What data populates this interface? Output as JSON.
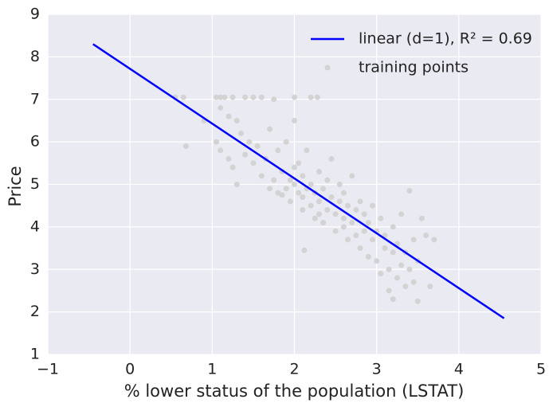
{
  "chart_data": {
    "type": "scatter",
    "xlabel": "% lower status of the population (LSTAT)",
    "ylabel": "Price",
    "xlim": [
      -1,
      5
    ],
    "ylim": [
      1,
      9
    ],
    "xticks": [
      {
        "value": -1,
        "label": "−1"
      },
      0,
      1,
      2,
      3,
      4,
      5
    ],
    "yticks": [
      1,
      2,
      3,
      4,
      5,
      6,
      7,
      8,
      9
    ],
    "grid": true,
    "legend": "upper right",
    "series": [
      {
        "name": "linear (d=1), R² = 0.69",
        "type": "line",
        "color": "#0000ff",
        "x": [
          -0.45,
          4.55
        ],
        "y": [
          8.3,
          1.85
        ]
      },
      {
        "name": "training points",
        "type": "scatter",
        "color": "#d3d3d3",
        "x": [
          0.55,
          0.65,
          0.68,
          0.9,
          1.05,
          1.1,
          1.15,
          1.25,
          1.4,
          1.5,
          1.6,
          1.75,
          2.0,
          2.2,
          2.28,
          1.1,
          1.2,
          1.3,
          1.05,
          1.1,
          1.2,
          1.25,
          1.3,
          1.35,
          1.4,
          1.45,
          1.5,
          1.55,
          1.6,
          1.65,
          1.7,
          1.7,
          1.75,
          1.8,
          1.8,
          1.85,
          1.9,
          1.9,
          1.95,
          1.95,
          2.0,
          2.0,
          2.05,
          2.05,
          2.1,
          2.1,
          2.12,
          2.15,
          2.15,
          2.2,
          2.2,
          2.25,
          2.25,
          2.3,
          2.3,
          2.35,
          2.35,
          2.4,
          2.4,
          2.45,
          2.45,
          2.5,
          2.5,
          2.55,
          2.55,
          2.6,
          2.6,
          2.65,
          2.65,
          2.7,
          2.7,
          2.75,
          2.75,
          2.8,
          2.8,
          2.85,
          2.85,
          2.9,
          2.9,
          2.95,
          2.95,
          3.0,
          3.0,
          3.05,
          3.05,
          3.1,
          3.1,
          3.15,
          3.2,
          3.2,
          3.25,
          3.25,
          3.3,
          3.3,
          3.35,
          3.35,
          3.4,
          3.4,
          3.45,
          3.45,
          3.5,
          3.5,
          3.55,
          3.6,
          3.65,
          3.7,
          3.2,
          3.15,
          2.0,
          1.85,
          2.1,
          2.3,
          2.6
        ],
        "y": [
          7.05,
          7.05,
          5.9,
          6.5,
          7.05,
          7.05,
          7.05,
          7.05,
          7.05,
          7.05,
          7.05,
          7.0,
          7.05,
          7.05,
          7.05,
          6.8,
          6.6,
          6.5,
          6.0,
          5.8,
          5.6,
          5.4,
          5.0,
          6.2,
          5.7,
          6.0,
          5.5,
          5.9,
          5.2,
          5.6,
          4.9,
          6.3,
          5.1,
          5.8,
          4.8,
          5.3,
          4.9,
          6.0,
          5.1,
          4.6,
          5.0,
          6.5,
          4.8,
          5.5,
          4.7,
          5.2,
          3.45,
          4.9,
          5.8,
          4.5,
          5.0,
          4.8,
          4.2,
          5.3,
          4.6,
          4.9,
          4.1,
          4.4,
          5.1,
          4.7,
          5.6,
          4.3,
          3.9,
          4.6,
          5.0,
          4.2,
          4.8,
          3.7,
          4.5,
          4.1,
          5.2,
          3.8,
          4.4,
          4.6,
          3.5,
          3.9,
          4.3,
          3.3,
          4.1,
          3.7,
          4.5,
          3.2,
          3.9,
          2.9,
          4.2,
          3.5,
          3.8,
          3.0,
          3.4,
          4.0,
          2.8,
          3.6,
          3.1,
          4.3,
          2.6,
          3.4,
          3.0,
          4.85,
          2.7,
          3.7,
          2.25,
          3.2,
          4.2,
          3.8,
          2.6,
          3.7,
          2.3,
          2.5,
          5.4,
          4.75,
          4.4,
          4.3,
          4.0
        ]
      }
    ]
  }
}
